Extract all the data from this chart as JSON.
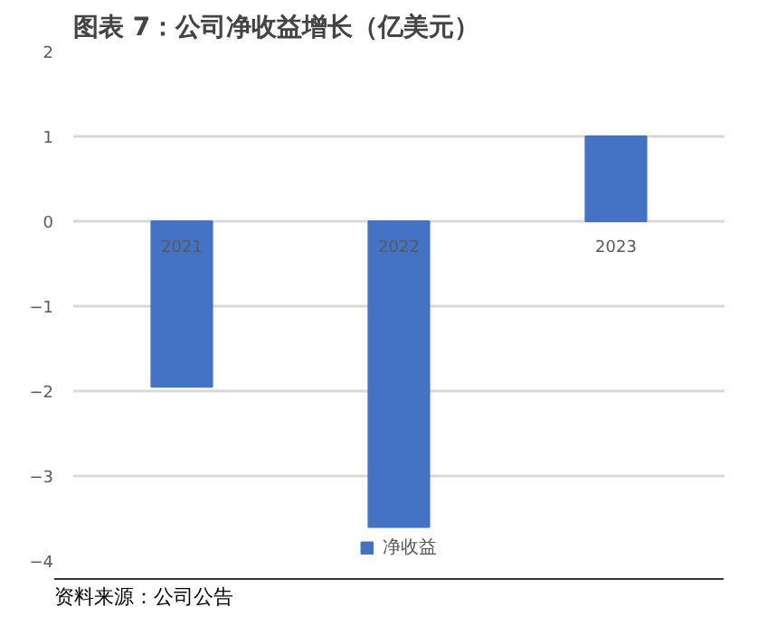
{
  "chart_data": {
    "type": "bar",
    "title": "图表 7：公司净收益增长（亿美元）",
    "categories": [
      "2021",
      "2022",
      "2023"
    ],
    "series": [
      {
        "name": "净收益",
        "color": "#4472c4",
        "values": [
          -1.95,
          -3.6,
          1.0
        ]
      }
    ],
    "ylim": [
      -4,
      2
    ],
    "yticks": [
      -4,
      -3,
      -2,
      -1,
      0,
      1,
      2
    ],
    "grid": "y",
    "legend": "bottom",
    "annotations": [
      "资料来源：公司公告"
    ]
  }
}
